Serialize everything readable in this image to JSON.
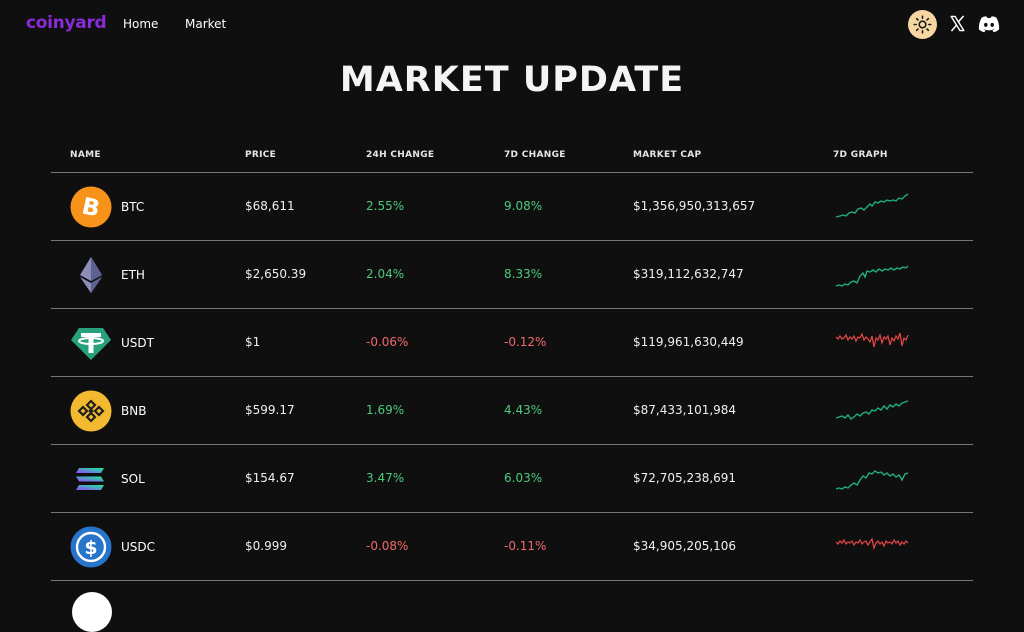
{
  "nav": {
    "logo": "coinyard",
    "links": [
      "Home",
      "Market"
    ],
    "icons": [
      "sun-icon",
      "x-icon",
      "discord-icon"
    ]
  },
  "title": "MARKET UPDATE",
  "table": {
    "headers": [
      "NAME",
      "PRICE",
      "24H CHANGE",
      "7D CHANGE",
      "MARKET CAP",
      "7D GRAPH"
    ],
    "rows": [
      {
        "symbol": "BTC",
        "price": "$68,611",
        "change24h": "2.55%",
        "change7d": "9.08%",
        "cap": "$1,356,950,313,657",
        "trend": "up",
        "icon": "bitcoin-icon"
      },
      {
        "symbol": "ETH",
        "price": "$2,650.39",
        "change24h": "2.04%",
        "change7d": "8.33%",
        "cap": "$319,112,632,747",
        "trend": "up",
        "icon": "ethereum-icon"
      },
      {
        "symbol": "USDT",
        "price": "$1",
        "change24h": "-0.06%",
        "change7d": "-0.12%",
        "cap": "$119,961,630,449",
        "trend": "down",
        "icon": "tether-icon"
      },
      {
        "symbol": "BNB",
        "price": "$599.17",
        "change24h": "1.69%",
        "change7d": "4.43%",
        "cap": "$87,433,101,984",
        "trend": "up",
        "icon": "bnb-icon"
      },
      {
        "symbol": "SOL",
        "price": "$154.67",
        "change24h": "3.47%",
        "change7d": "6.03%",
        "cap": "$72,705,238,691",
        "trend": "up",
        "icon": "solana-icon"
      },
      {
        "symbol": "USDC",
        "price": "$0.999",
        "change24h": "-0.08%",
        "change7d": "-0.11%",
        "cap": "$34,905,205,106",
        "trend": "down",
        "icon": "usdc-icon"
      }
    ]
  },
  "colors": {
    "background": "#0f0f10",
    "brand": "#8b2ad8",
    "positive": "#4ccb7a",
    "negative": "#f06868",
    "sparkline_up": "#1fae7a",
    "sparkline_down": "#e84545"
  }
}
